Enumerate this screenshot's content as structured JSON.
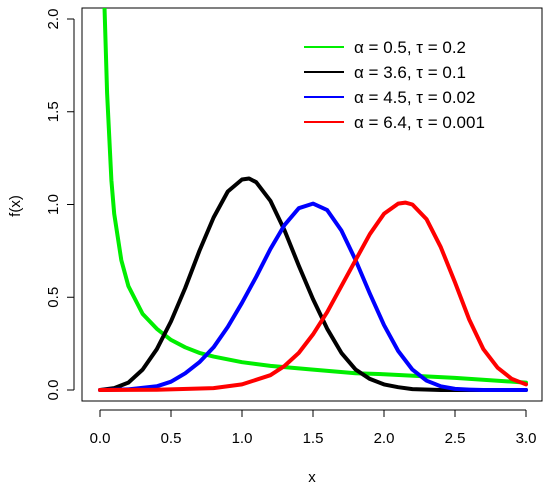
{
  "chart_data": {
    "type": "line",
    "title": "",
    "xlabel": "x",
    "ylabel": "f(x)",
    "xlim": [
      0,
      3
    ],
    "ylim": [
      0,
      2
    ],
    "x_ticks": [
      0,
      0.5,
      1,
      1.5,
      2,
      2.5,
      3
    ],
    "x_tick_labels": [
      "0.0",
      "0.5",
      "1.0",
      "1.5",
      "2.0",
      "2.5",
      "3.0"
    ],
    "y_ticks": [
      0,
      0.5,
      1,
      1.5,
      2
    ],
    "y_tick_labels": [
      "0.0",
      "0.5",
      "1.0",
      "1.5",
      "2.0"
    ],
    "grid": false,
    "legend_position": "top-right",
    "series": [
      {
        "name": "α = 0.5, τ = 0.2",
        "color": "#00ee00",
        "x": [
          0.03,
          0.05,
          0.08,
          0.1,
          0.15,
          0.2,
          0.3,
          0.4,
          0.5,
          0.6,
          0.7,
          0.8,
          1.0,
          1.2,
          1.5,
          1.8,
          2.0,
          2.5,
          3.0
        ],
        "y": [
          2.1,
          1.6,
          1.13,
          0.95,
          0.7,
          0.56,
          0.41,
          0.33,
          0.27,
          0.23,
          0.2,
          0.18,
          0.15,
          0.13,
          0.11,
          0.09,
          0.085,
          0.065,
          0.04
        ]
      },
      {
        "name": "α = 3.6, τ = 0.1",
        "color": "#000000",
        "x": [
          0,
          0.1,
          0.2,
          0.3,
          0.4,
          0.5,
          0.6,
          0.7,
          0.8,
          0.9,
          1.0,
          1.05,
          1.1,
          1.2,
          1.3,
          1.4,
          1.5,
          1.6,
          1.7,
          1.8,
          1.9,
          2.0,
          2.1,
          2.2,
          2.4,
          2.6,
          3.0
        ],
        "y": [
          0,
          0.01,
          0.04,
          0.11,
          0.22,
          0.37,
          0.55,
          0.75,
          0.93,
          1.07,
          1.135,
          1.14,
          1.12,
          1.02,
          0.86,
          0.67,
          0.49,
          0.33,
          0.2,
          0.11,
          0.06,
          0.03,
          0.015,
          0.005,
          0.0,
          0.0,
          0.0
        ]
      },
      {
        "name": "α = 4.5, τ = 0.02",
        "color": "#0000ff",
        "x": [
          0,
          0.2,
          0.4,
          0.5,
          0.6,
          0.7,
          0.8,
          0.9,
          1.0,
          1.1,
          1.2,
          1.3,
          1.4,
          1.5,
          1.6,
          1.7,
          1.8,
          1.9,
          2.0,
          2.1,
          2.2,
          2.3,
          2.4,
          2.5,
          2.6,
          2.7,
          3.0
        ],
        "y": [
          0,
          0.003,
          0.02,
          0.045,
          0.09,
          0.15,
          0.23,
          0.34,
          0.47,
          0.61,
          0.76,
          0.89,
          0.98,
          1.005,
          0.97,
          0.86,
          0.7,
          0.52,
          0.35,
          0.21,
          0.11,
          0.05,
          0.02,
          0.006,
          0.002,
          0.0,
          0.0
        ]
      },
      {
        "name": "α = 6.4, τ = 0.001",
        "color": "#ff0000",
        "x": [
          0,
          0.4,
          0.8,
          1.0,
          1.2,
          1.3,
          1.4,
          1.5,
          1.6,
          1.7,
          1.8,
          1.9,
          2.0,
          2.1,
          2.15,
          2.2,
          2.3,
          2.4,
          2.5,
          2.6,
          2.7,
          2.8,
          2.9,
          2.95,
          3.0
        ],
        "y": [
          0,
          0.001,
          0.01,
          0.03,
          0.08,
          0.13,
          0.2,
          0.3,
          0.42,
          0.56,
          0.7,
          0.84,
          0.95,
          1.005,
          1.01,
          1.0,
          0.92,
          0.77,
          0.58,
          0.38,
          0.22,
          0.12,
          0.06,
          0.045,
          0.03
        ]
      }
    ]
  }
}
